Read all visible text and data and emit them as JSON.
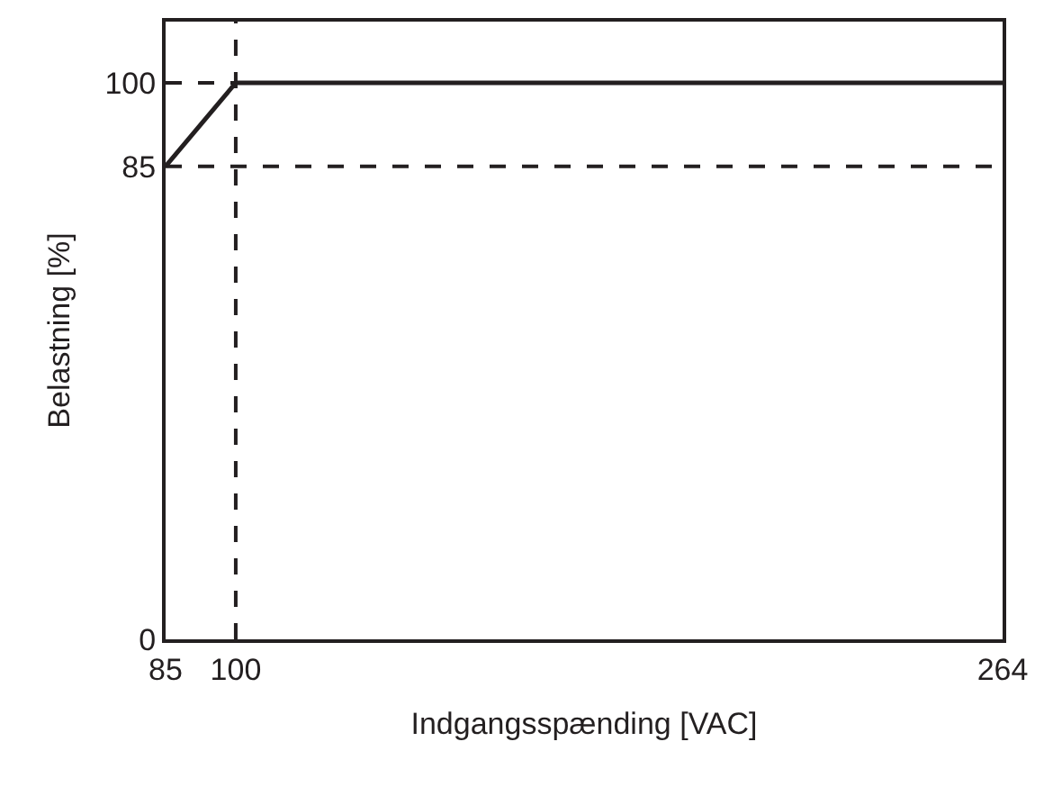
{
  "chart_data": {
    "type": "line",
    "xlabel": "Indgangsspænding [VAC]",
    "ylabel": "Belastning [%]",
    "x": [
      85,
      100,
      264
    ],
    "series": [
      {
        "color": "#231f20",
        "values": [
          85,
          100,
          100
        ]
      }
    ],
    "xlim": [
      85,
      264
    ],
    "xticks": [
      85,
      100,
      264
    ],
    "ylim": [
      0,
      111
    ],
    "yticks": [
      0,
      85,
      100
    ],
    "ref_lines": [
      {
        "axis": "x",
        "value": 100,
        "line_style": "dashed",
        "color": "#231f20"
      },
      {
        "axis": "y",
        "value": 100,
        "line_style": "dashed",
        "color": "#231f20"
      },
      {
        "axis": "y",
        "value": 85,
        "line_style": "dashed",
        "color": "#231f20"
      }
    ],
    "grid": false,
    "marker": "none",
    "line_style": "solid"
  }
}
